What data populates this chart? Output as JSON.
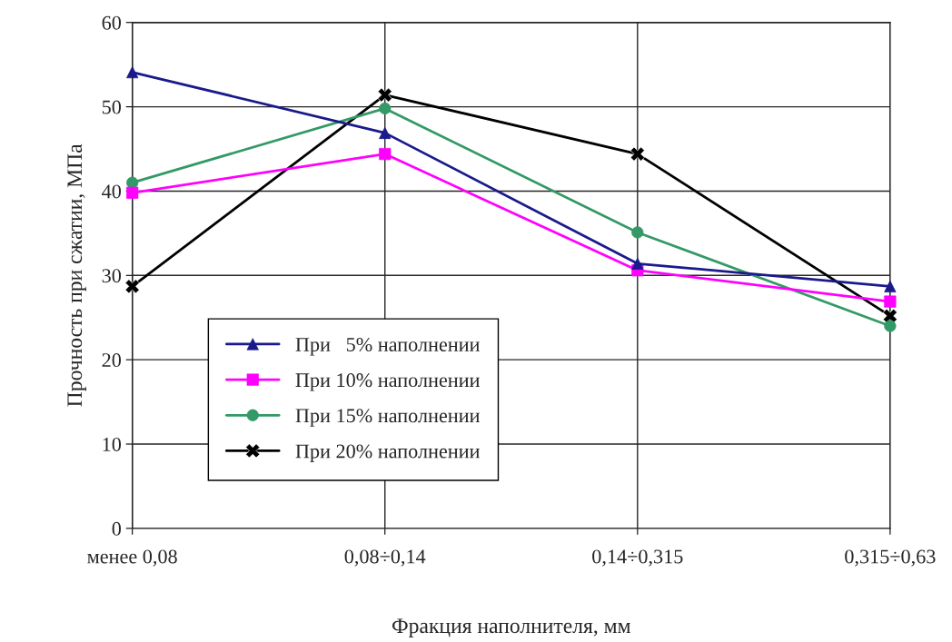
{
  "chart_data": {
    "type": "line",
    "xlabel": "Фракция наполнителя, мм",
    "ylabel": "Прочность при сжатии, МПа",
    "categories": [
      "менее 0,08",
      "0,08÷0,14",
      "0,14÷0,315",
      "0,315÷0,63"
    ],
    "series": [
      {
        "name": "При   5% наполнении",
        "color": "#1a1a8c",
        "marker": "triangle",
        "values": [
          54.1,
          46.9,
          31.4,
          28.7
        ]
      },
      {
        "name": "При 10% наполнении",
        "color": "#ff00ff",
        "marker": "square",
        "values": [
          39.8,
          44.4,
          30.6,
          26.9
        ]
      },
      {
        "name": "При 15% наполнении",
        "color": "#339966",
        "marker": "circle",
        "values": [
          41.0,
          49.8,
          35.1,
          24.0
        ]
      },
      {
        "name": "При 20% наполнении",
        "color": "#000000",
        "marker": "cross",
        "values": [
          28.7,
          51.4,
          44.4,
          25.2
        ]
      }
    ],
    "ylim": [
      0,
      60
    ],
    "yticks": [
      0,
      10,
      20,
      30,
      40,
      50,
      60
    ],
    "grid": true,
    "legend": "bottom left",
    "line_style": "solid"
  }
}
